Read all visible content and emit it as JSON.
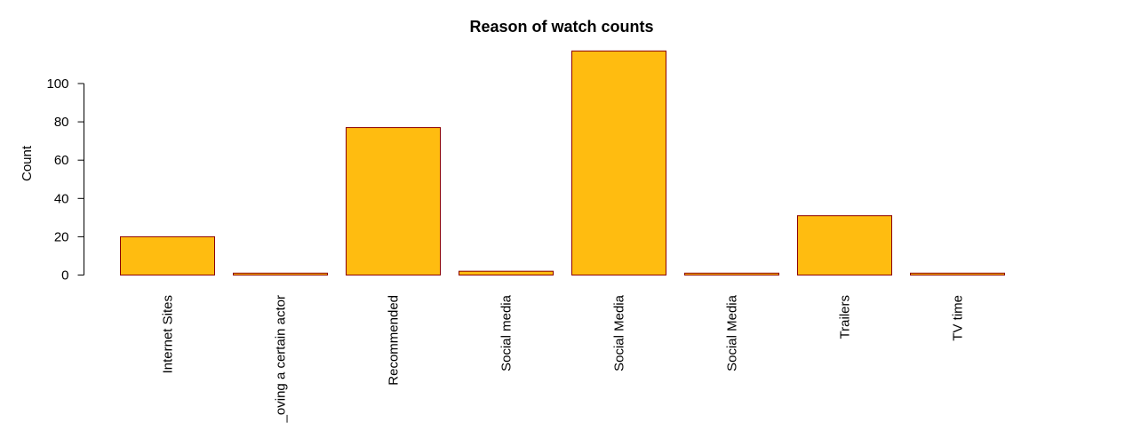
{
  "chart_data": {
    "type": "bar",
    "title": "Reason of watch counts",
    "xlabel": "",
    "ylabel": "Count",
    "categories": [
      "Internet Sites",
      "_oving a certain actor",
      "Recommended",
      "Social media",
      "Social Media",
      "Social Media",
      "Trailers",
      "TV time"
    ],
    "values": [
      20,
      1,
      77,
      2,
      117,
      1,
      31,
      1
    ],
    "yticks": [
      0,
      20,
      40,
      60,
      80,
      100
    ],
    "ylim": [
      0,
      117
    ],
    "grid": false,
    "legend": "none",
    "bar_fill": "#FFBC10",
    "bar_stroke": "#8B0000"
  }
}
